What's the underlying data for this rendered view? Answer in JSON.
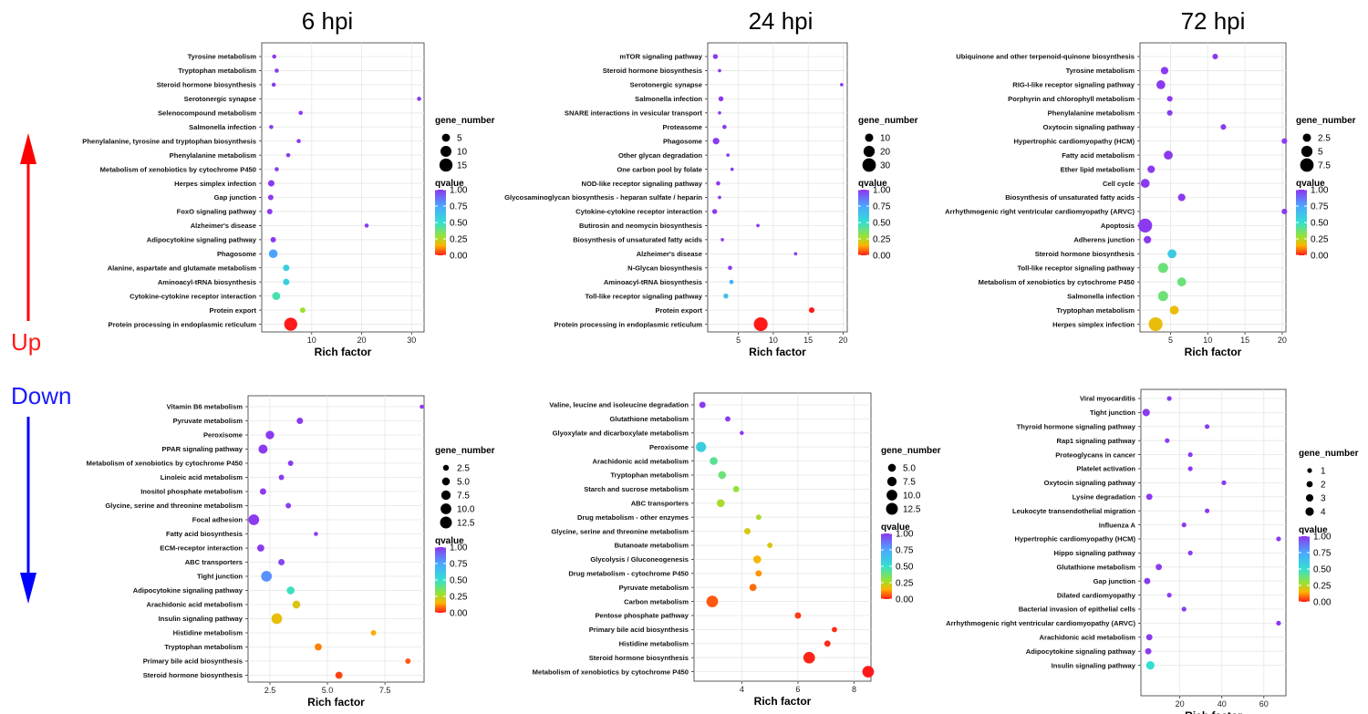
{
  "arrows": {
    "up_label": "Up",
    "down_label": "Down",
    "up_color": "#ff0000",
    "down_color": "#0000ff"
  },
  "column_titles": [
    "6 hpi",
    "24 hpi",
    "72 hpi"
  ],
  "legend_labels": {
    "size_title": "gene_number",
    "color_title": "qvalue",
    "color_ticks": [
      "1.00",
      "0.75",
      "0.50",
      "0.25",
      "0.00"
    ]
  },
  "chart_data": [
    {
      "id": "6hpi-up",
      "type": "scatter",
      "title": "6 hpi",
      "direction": "Up",
      "xlabel": "Rich factor",
      "ylabel": "",
      "grid": true,
      "xlim": [
        0,
        32.5
      ],
      "xticks": [
        10,
        20,
        30
      ],
      "size_legend": [
        5,
        10,
        15
      ],
      "size_max": 17,
      "terms": [
        "Tyrosine metabolism",
        "Tryptophan metabolism",
        "Steroid hormone biosynthesis",
        "Serotonergic synapse",
        "Selenocompound metabolism",
        "Salmonella infection",
        "Phenylalanine, tyrosine and tryptophan biosynthesis",
        "Phenylalanine metabolism",
        "Metabolism of xenobiotics by cytochrome P450",
        "Herpes simplex infection",
        "Gap junction",
        "FoxO signaling pathway",
        "Alzheimer's disease",
        "Adipocytokine signaling pathway",
        "Phagosome",
        "Alanine, aspartate and glutamate metabolism",
        "Aminoacyl-tRNA biosynthesis",
        "Cytokine-cytokine receptor interaction",
        "Protein export",
        "Protein processing in endoplasmic reticulum"
      ],
      "rich_factor": [
        2.5,
        3.0,
        2.4,
        31.5,
        7.8,
        1.9,
        7.4,
        5.3,
        3.0,
        1.9,
        1.8,
        1.6,
        21.0,
        2.3,
        2.3,
        4.9,
        4.9,
        2.9,
        8.2,
        5.8
      ],
      "gene_number": [
        1,
        1,
        1,
        1,
        1,
        1,
        1,
        1,
        1,
        3,
        2,
        2,
        1,
        2,
        6,
        3,
        3,
        5,
        2,
        15
      ],
      "qvalue": [
        0.99,
        0.99,
        0.99,
        0.99,
        0.99,
        0.99,
        0.99,
        0.99,
        0.99,
        0.99,
        0.99,
        0.99,
        0.99,
        0.99,
        0.76,
        0.58,
        0.58,
        0.46,
        0.28,
        0.0
      ]
    },
    {
      "id": "24hpi-up",
      "type": "scatter",
      "title": "24 hpi",
      "direction": "Up",
      "xlabel": "Rich factor",
      "ylabel": "",
      "grid": true,
      "xlim": [
        0.6,
        20.6
      ],
      "xticks": [
        5,
        10,
        15,
        20
      ],
      "size_legend": [
        10,
        20,
        30
      ],
      "size_max": 32,
      "terms": [
        "mTOR signaling pathway",
        "Steroid hormone biosynthesis",
        "Serotonergic synapse",
        "Salmonella infection",
        "SNARE interactions in vesicular transport",
        "Proteasome",
        "Phagosome",
        "Other glycan degradation",
        "One carbon pool by folate",
        "NOD-like receptor signaling pathway",
        "Glycosaminoglycan biosynthesis - heparan sulfate / heparin",
        "Cytokine-cytokine receptor interaction",
        "Butirosin and neomycin biosynthesis",
        "Biosynthesis of unsaturated fatty acids",
        "Alzheimer's disease",
        "N-Glycan biosynthesis",
        "Aminoacyl-tRNA biosynthesis",
        "Toll-like receptor signaling pathway",
        "Protein export",
        "Protein processing in endoplasmic reticulum"
      ],
      "rich_factor": [
        1.7,
        2.3,
        19.8,
        2.5,
        2.3,
        3.0,
        1.8,
        3.5,
        4.1,
        2.1,
        2.3,
        1.6,
        7.8,
        2.7,
        13.2,
        3.8,
        4.0,
        3.2,
        15.5,
        8.2
      ],
      "gene_number": [
        3,
        1,
        1,
        3,
        1,
        2,
        6,
        1,
        1,
        2,
        1,
        3,
        1,
        1,
        1,
        2,
        2,
        3,
        4,
        32
      ],
      "qvalue": [
        0.99,
        0.99,
        0.99,
        0.99,
        0.99,
        0.99,
        0.99,
        0.99,
        0.99,
        0.99,
        0.99,
        0.99,
        0.99,
        0.99,
        0.99,
        0.99,
        0.72,
        0.64,
        0.0,
        0.0
      ]
    },
    {
      "id": "72hpi-up",
      "type": "scatter",
      "title": "72 hpi",
      "direction": "Up",
      "xlabel": "Rich factor",
      "ylabel": "",
      "grid": true,
      "xlim": [
        0.9,
        20.5
      ],
      "xticks": [
        5,
        10,
        15,
        20
      ],
      "size_legend": [
        2.5,
        5.0,
        7.5
      ],
      "size_max": 8,
      "terms": [
        "Ubiquinone and other terpenoid-quinone biosynthesis",
        "Tyrosine metabolism",
        "RIG-I-like receptor signaling pathway",
        "Porphyrin and chlorophyll metabolism",
        "Phenylalanine metabolism",
        "Oxytocin signaling pathway",
        "Hypertrophic cardiomyopathy (HCM)",
        "Fatty acid metabolism",
        "Ether lipid metabolism",
        "Cell cycle",
        "Biosynthesis of unsaturated fatty acids",
        "Arrhythmogenic right ventricular cardiomyopathy (ARVC)",
        "Apoptosis",
        "Adherens junction",
        "Steroid hormone biosynthesis",
        "Toll-like receptor signaling pathway",
        "Metabolism of xenobiotics by cytochrome P450",
        "Salmonella infection",
        "Tryptophan metabolism",
        "Herpes simplex infection"
      ],
      "rich_factor": [
        11.0,
        4.2,
        3.7,
        4.9,
        4.9,
        12.1,
        20.3,
        4.7,
        2.4,
        1.6,
        6.5,
        20.3,
        1.6,
        1.9,
        5.2,
        4.0,
        6.5,
        4.0,
        5.5,
        3.0
      ],
      "gene_number": [
        1,
        2,
        3,
        1,
        1,
        1,
        1,
        3,
        2,
        3,
        2,
        1,
        8,
        2,
        3,
        4,
        3,
        4,
        3,
        8
      ],
      "qvalue": [
        0.99,
        0.99,
        0.99,
        0.99,
        0.99,
        0.99,
        0.99,
        0.99,
        0.99,
        0.99,
        0.99,
        0.99,
        0.99,
        0.99,
        0.6,
        0.38,
        0.38,
        0.38,
        0.18,
        0.18
      ]
    },
    {
      "id": "6hpi-down",
      "type": "scatter",
      "title": "6 hpi",
      "direction": "Down",
      "xlabel": "Rich factor",
      "ylabel": "",
      "grid": true,
      "xlim": [
        1.55,
        9.2
      ],
      "xticks": [
        2.5,
        5.0,
        7.5
      ],
      "xtick_labels": [
        "2.5",
        "5.0",
        "7.5"
      ],
      "size_legend": [
        2.5,
        5.0,
        7.5,
        10.0,
        12.5
      ],
      "size_legend_labels": [
        "2.5",
        "5.0",
        "7.5",
        "10.0",
        "12.5"
      ],
      "size_max": 13,
      "terms": [
        "Vitamin B6 metabolism",
        "Pyruvate metabolism",
        "Peroxisome",
        "PPAR signaling pathway",
        "Metabolism of xenobiotics by cytochrome P450",
        "Linoleic acid metabolism",
        "Inositol phosphate metabolism",
        "Glycine, serine and threonine metabolism",
        "Focal adhesion",
        "Fatty acid biosynthesis",
        "ECM-receptor interaction",
        "ABC transporters",
        "Tight junction",
        "Adipocytokine signaling pathway",
        "Arachidonic acid metabolism",
        "Insulin signaling pathway",
        "Histidine metabolism",
        "Tryptophan metabolism",
        "Primary bile acid biosynthesis",
        "Steroid hormone biosynthesis"
      ],
      "rich_factor": [
        9.1,
        3.8,
        2.5,
        2.2,
        3.4,
        3.0,
        2.2,
        3.3,
        1.8,
        4.5,
        2.1,
        3.0,
        2.35,
        3.4,
        3.65,
        2.8,
        7.0,
        4.6,
        8.5,
        5.5
      ],
      "gene_number": [
        1,
        3,
        6,
        7,
        2,
        2,
        3,
        2,
        10,
        1,
        4,
        3,
        10,
        5,
        5,
        10,
        2,
        4,
        2,
        4
      ],
      "qvalue": [
        0.99,
        0.99,
        0.99,
        0.99,
        0.99,
        0.99,
        0.99,
        0.99,
        0.99,
        0.99,
        0.99,
        0.96,
        0.8,
        0.48,
        0.2,
        0.18,
        0.14,
        0.1,
        0.06,
        0.04
      ]
    },
    {
      "id": "24hpi-down",
      "type": "scatter",
      "title": "24 hpi",
      "direction": "Down",
      "xlabel": "Rich factor",
      "ylabel": "",
      "grid": true,
      "xlim": [
        2.3,
        8.6
      ],
      "xticks": [
        4,
        6,
        8
      ],
      "size_legend": [
        5.0,
        7.5,
        10.0,
        12.5
      ],
      "size_legend_labels": [
        "5.0",
        "7.5",
        "10.0",
        "12.5"
      ],
      "size_max": 13,
      "terms": [
        "Valine, leucine and isoleucine degradation",
        "Glutathione metabolism",
        "Glyoxylate and dicarboxylate metabolism",
        "Peroxisome",
        "Arachidonic acid metabolism",
        "Tryptophan metabolism",
        "Starch and sucrose metabolism",
        "ABC transporters",
        "Drug metabolism - other enzymes",
        "Glycine, serine and threonine metabolism",
        "Butanoate metabolism",
        "Glycolysis / Gluconeogenesis",
        "Drug metabolism - cytochrome P450",
        "Pyruvate metabolism",
        "Carbon metabolism",
        "Pentose phosphate pathway",
        "Primary bile acid biosynthesis",
        "Histidine metabolism",
        "Steroid hormone biosynthesis",
        "Metabolism of xenobiotics by cytochrome P450"
      ],
      "rich_factor": [
        2.6,
        3.5,
        4.0,
        2.55,
        3.0,
        3.3,
        3.8,
        3.25,
        4.6,
        4.2,
        5.0,
        4.55,
        4.6,
        4.4,
        2.95,
        6.0,
        7.3,
        7.05,
        6.4,
        8.5
      ],
      "gene_number": [
        3,
        2,
        1,
        9,
        5,
        5,
        3,
        5,
        2,
        3,
        2,
        5,
        3,
        4,
        12,
        3,
        2,
        3,
        12,
        12
      ],
      "qvalue": [
        0.99,
        0.99,
        0.99,
        0.58,
        0.42,
        0.38,
        0.3,
        0.26,
        0.26,
        0.2,
        0.2,
        0.16,
        0.12,
        0.08,
        0.06,
        0.03,
        0.02,
        0.02,
        0.01,
        0.0
      ]
    },
    {
      "id": "72hpi-down",
      "type": "scatter",
      "title": "72 hpi",
      "direction": "Down",
      "xlabel": "Rich factor",
      "ylabel": "",
      "grid": true,
      "xlim": [
        1.5,
        70.5
      ],
      "xticks": [
        20,
        40,
        60
      ],
      "size_legend": [
        1,
        2,
        3,
        4
      ],
      "size_max": 4,
      "terms": [
        "Viral myocarditis",
        "Tight junction",
        "Thyroid hormone signaling pathway",
        "Rap1 signaling pathway",
        "Proteoglycans in cancer",
        "Platelet activation",
        "Oxytocin signaling pathway",
        "Lysine degradation",
        "Leukocyte transendothelial migration",
        "Influenza A",
        "Hypertrophic cardiomyopathy (HCM)",
        "Hippo signaling pathway",
        "Glutathione metabolism",
        "Gap junction",
        "Dilated cardiomyopathy",
        "Bacterial invasion of epithelial cells",
        "Arrhythmogenic right ventricular cardiomyopathy (ARVC)",
        "Arachidonic acid metabolism",
        "Adipocytokine signaling pathway",
        "Insulin signaling pathway"
      ],
      "rich_factor": [
        15.0,
        4.0,
        33.0,
        14.0,
        25.0,
        25.0,
        41.0,
        5.5,
        33.0,
        22.0,
        67.0,
        25.0,
        10.0,
        4.5,
        15.0,
        22.0,
        67.0,
        5.5,
        5.0,
        6.0
      ],
      "gene_number": [
        1,
        3,
        1,
        1,
        1,
        1,
        1,
        2,
        1,
        1,
        1,
        1,
        2,
        2,
        1,
        1,
        1,
        2,
        2,
        4
      ],
      "qvalue": [
        0.99,
        0.99,
        0.99,
        0.99,
        0.99,
        0.99,
        0.99,
        0.99,
        0.99,
        0.99,
        0.99,
        0.99,
        0.99,
        0.99,
        0.99,
        0.99,
        0.99,
        0.99,
        0.99,
        0.5
      ]
    }
  ]
}
